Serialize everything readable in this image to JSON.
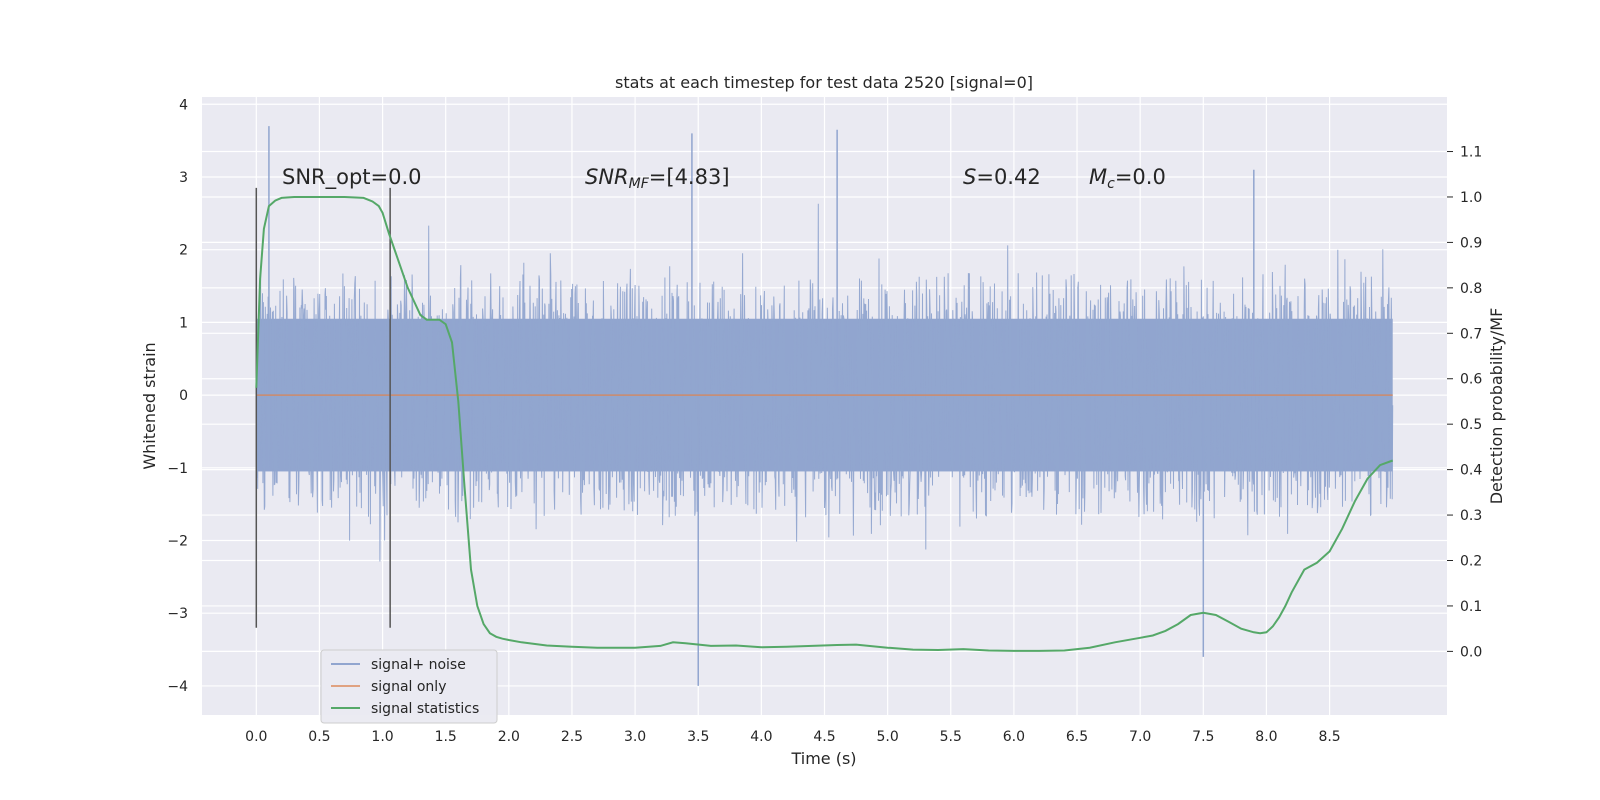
{
  "chart_data": {
    "type": "line",
    "title": "stats at each timestep for test data 2520 [signal=0]",
    "xlabel": "Time (s)",
    "ylabel": "Whitened strain",
    "y2label": "Detection probability/MF",
    "xlim": [
      -0.43,
      9.43
    ],
    "ylim": [
      -4.4,
      4.1
    ],
    "y2lim": [
      -0.14,
      1.22
    ],
    "xticks": [
      "0.0",
      "0.5",
      "1.0",
      "1.5",
      "2.0",
      "2.5",
      "3.0",
      "3.5",
      "4.0",
      "4.5",
      "5.0",
      "5.5",
      "6.0",
      "6.5",
      "7.0",
      "7.5",
      "8.0",
      "8.5"
    ],
    "yticks": [
      "4",
      "3",
      "2",
      "1",
      "0",
      "−1",
      "−2",
      "−3",
      "−4"
    ],
    "y2ticks": [
      "1.1",
      "1.0",
      "0.9",
      "0.8",
      "0.7",
      "0.6",
      "0.5",
      "0.4",
      "0.3",
      "0.2",
      "0.1",
      "0.0"
    ],
    "annotations": {
      "snr_opt": "SNR_opt=0.0",
      "snr_mf_sym": "SNR",
      "snr_mf_sub": "MF",
      "snr_mf_val": "=[4.83]",
      "s_sym": "S",
      "s_val": "=0.42",
      "mc_sym": "M",
      "mc_sub": "c",
      "mc_val": "=0.0"
    },
    "vlines_x": [
      0.0,
      1.06
    ],
    "vlines_y": [
      -3.2,
      2.85
    ],
    "noise": {
      "x_start": 0.0,
      "x_end": 9.0,
      "core_amplitude": 1.05,
      "sigma": 0.75,
      "spikes": [
        [
          0.1,
          3.7
        ],
        [
          3.5,
          -4.0
        ],
        [
          3.45,
          3.6
        ],
        [
          4.6,
          3.65
        ],
        [
          7.5,
          -3.6
        ],
        [
          7.9,
          3.1
        ]
      ]
    },
    "series": [
      {
        "name": "signal+ noise",
        "color": "#91a5cf"
      },
      {
        "name": "signal only",
        "color": "#dd8452",
        "y": 0
      },
      {
        "name": "signal statistics",
        "color": "#55a868",
        "x": [
          0.0,
          0.03,
          0.06,
          0.1,
          0.15,
          0.2,
          0.3,
          0.5,
          0.7,
          0.85,
          0.92,
          0.97,
          1.0,
          1.05,
          1.1,
          1.15,
          1.2,
          1.25,
          1.3,
          1.35,
          1.4,
          1.45,
          1.5,
          1.55,
          1.6,
          1.65,
          1.7,
          1.75,
          1.8,
          1.85,
          1.9,
          1.95,
          2.0,
          2.1,
          2.3,
          2.5,
          2.7,
          3.0,
          3.2,
          3.3,
          3.4,
          3.6,
          3.8,
          4.0,
          4.2,
          4.4,
          4.6,
          4.75,
          5.0,
          5.2,
          5.4,
          5.6,
          5.8,
          6.0,
          6.2,
          6.4,
          6.6,
          6.8,
          7.0,
          7.1,
          7.2,
          7.3,
          7.4,
          7.5,
          7.6,
          7.7,
          7.8,
          7.9,
          7.95,
          8.0,
          8.05,
          8.1,
          8.15,
          8.2,
          8.3,
          8.4,
          8.5,
          8.6,
          8.7,
          8.8,
          8.9,
          9.0
        ],
        "y": [
          0.58,
          0.82,
          0.93,
          0.98,
          0.992,
          0.998,
          1.0,
          1.0,
          1.0,
          0.998,
          0.99,
          0.98,
          0.965,
          0.92,
          0.88,
          0.84,
          0.8,
          0.77,
          0.74,
          0.73,
          0.73,
          0.73,
          0.72,
          0.68,
          0.55,
          0.36,
          0.18,
          0.1,
          0.06,
          0.04,
          0.032,
          0.028,
          0.025,
          0.02,
          0.013,
          0.01,
          0.008,
          0.008,
          0.012,
          0.02,
          0.018,
          0.012,
          0.013,
          0.009,
          0.01,
          0.012,
          0.014,
          0.015,
          0.008,
          0.004,
          0.003,
          0.005,
          0.002,
          0.001,
          0.001,
          0.002,
          0.008,
          0.02,
          0.03,
          0.035,
          0.045,
          0.06,
          0.08,
          0.085,
          0.08,
          0.065,
          0.05,
          0.042,
          0.04,
          0.042,
          0.055,
          0.075,
          0.1,
          0.13,
          0.18,
          0.195,
          0.22,
          0.27,
          0.33,
          0.38,
          0.41,
          0.42
        ]
      }
    ],
    "legend_position": "lower-left"
  }
}
